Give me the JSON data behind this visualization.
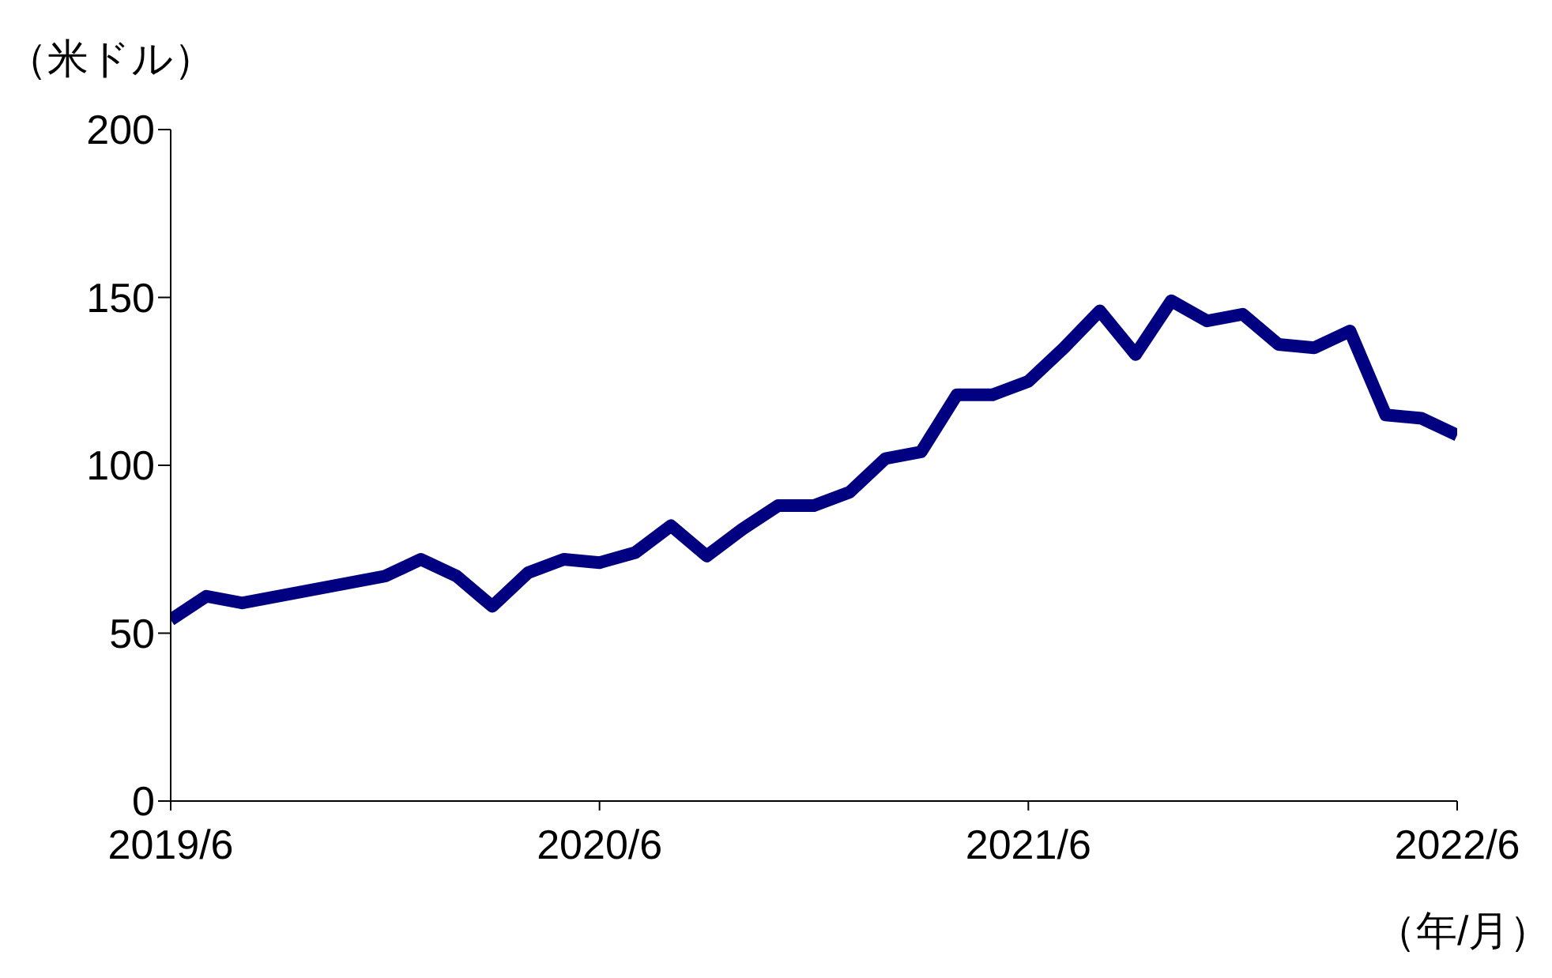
{
  "chart_data": {
    "type": "line",
    "ylabel": "（米ドル）",
    "xlabel": "（年/月）",
    "x": [
      "2019-06",
      "2019-07",
      "2019-08",
      "2019-09",
      "2019-10",
      "2019-11",
      "2019-12",
      "2020-01",
      "2020-02",
      "2020-03",
      "2020-04",
      "2020-05",
      "2020-06",
      "2020-07",
      "2020-08",
      "2020-09",
      "2020-10",
      "2020-11",
      "2020-12",
      "2021-01",
      "2021-02",
      "2021-03",
      "2021-04",
      "2021-05",
      "2021-06",
      "2021-07",
      "2021-08",
      "2021-09",
      "2021-10",
      "2021-11",
      "2021-12",
      "2022-01",
      "2022-02",
      "2022-03",
      "2022-04",
      "2022-05",
      "2022-06"
    ],
    "series": [
      {
        "color": "#000080",
        "values": [
          54,
          61,
          59,
          61,
          63,
          65,
          67,
          72,
          67,
          58,
          68,
          72,
          71,
          74,
          82,
          73,
          81,
          88,
          88,
          92,
          102,
          104,
          121,
          121,
          125,
          135,
          146,
          133,
          149,
          143,
          145,
          136,
          135,
          140,
          115,
          114,
          109
        ]
      }
    ],
    "xlim": [
      "2019-06",
      "2022-06"
    ],
    "xticks": [
      {
        "value": "2019-06",
        "label": "2019/6"
      },
      {
        "value": "2020-06",
        "label": "2020/6"
      },
      {
        "value": "2021-06",
        "label": "2021/6"
      },
      {
        "value": "2022-06",
        "label": "2022/6"
      }
    ],
    "ylim": [
      0,
      200
    ],
    "yticks": [
      0,
      50,
      100,
      150,
      200
    ],
    "grid": false,
    "legend": false,
    "marker": "none",
    "line_style": "solid"
  }
}
